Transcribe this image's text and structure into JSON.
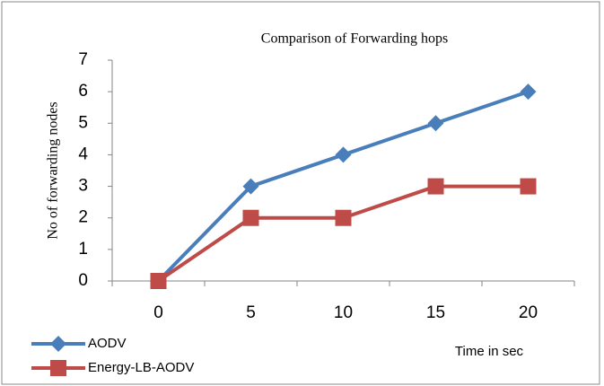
{
  "chart_data": {
    "type": "line",
    "title": "Comparison of Forwarding hops",
    "y_label": "No of forwarding nodes",
    "x_label": "Time in sec",
    "categories": [
      "0",
      "5",
      "10",
      "15",
      "20"
    ],
    "series": [
      {
        "name": "AODV",
        "color": "#4a7ebb",
        "marker": "diamond",
        "values": [
          0,
          3,
          4,
          5,
          6
        ]
      },
      {
        "name": "Energy-LB-AODV",
        "color": "#be4b48",
        "marker": "square",
        "values": [
          0,
          2,
          2,
          3,
          3
        ]
      }
    ],
    "ylim": [
      0,
      7
    ],
    "yticks": [
      0,
      1,
      2,
      3,
      4,
      5,
      6,
      7
    ],
    "grid": false,
    "legend": "bottom-left"
  }
}
